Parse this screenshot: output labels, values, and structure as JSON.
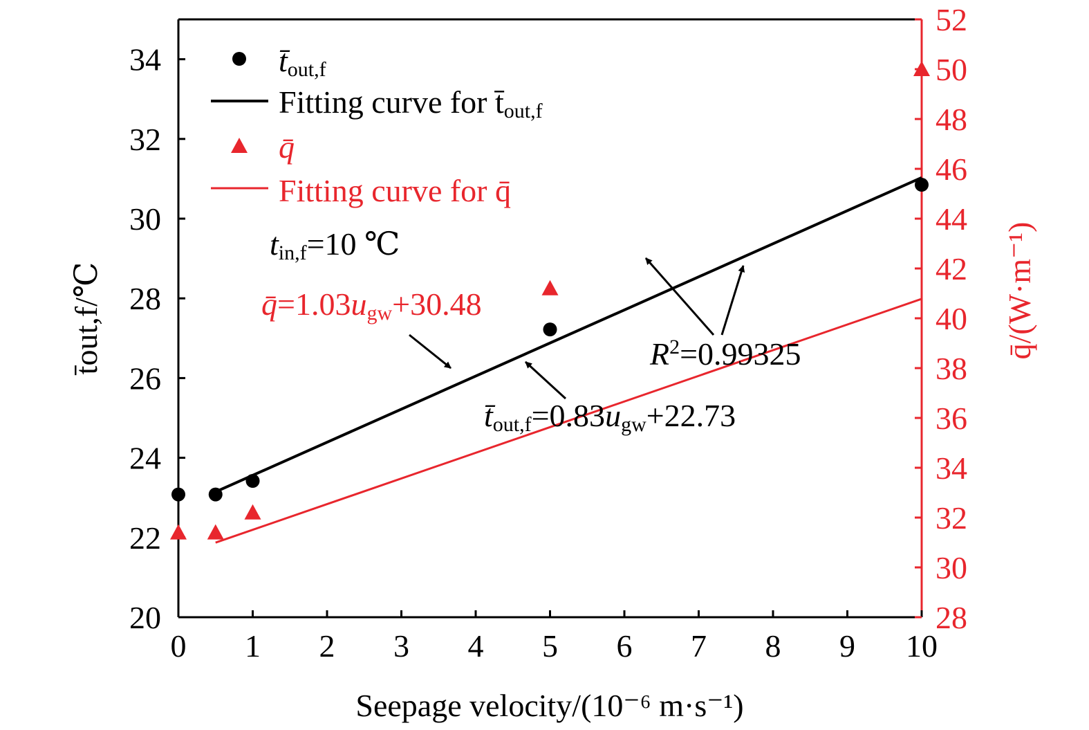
{
  "chart_data": {
    "type": "scatter",
    "x_axis": {
      "label": "Seepage velocity/(10⁻⁶ m·s⁻¹)",
      "range": [
        0,
        10
      ],
      "ticks": [
        "0",
        "1",
        "2",
        "3",
        "4",
        "5",
        "6",
        "7",
        "8",
        "9",
        "10"
      ]
    },
    "y_left": {
      "label": "t̄out,f/℃",
      "range": [
        20,
        35
      ],
      "ticks": [
        "20",
        "22",
        "24",
        "26",
        "28",
        "30",
        "32",
        "34"
      ],
      "color": "#000000"
    },
    "y_right": {
      "label": "q̄/(W·m⁻¹)",
      "range": [
        28,
        52
      ],
      "ticks": [
        "28",
        "30",
        "32",
        "34",
        "36",
        "38",
        "40",
        "42",
        "44",
        "46",
        "48",
        "50",
        "52"
      ],
      "color": "#e8262d"
    },
    "series": [
      {
        "name": "t̄out,f",
        "axis": "left",
        "marker": "circle",
        "color": "#000000",
        "x": [
          0,
          0.5,
          1,
          5,
          10
        ],
        "y": [
          23.08,
          23.08,
          23.42,
          27.22,
          30.85
        ]
      },
      {
        "name": "Fitting curve for t̄out,f",
        "axis": "left",
        "line": true,
        "color": "#000000",
        "slope": 0.83,
        "intercept": 22.73,
        "x_range": [
          0.5,
          10
        ]
      },
      {
        "name": "q̄",
        "axis": "right",
        "marker": "triangle",
        "color": "#e8262d",
        "x": [
          0,
          0.5,
          1,
          5,
          10
        ],
        "y": [
          31.4,
          31.4,
          32.2,
          41.2,
          50.0
        ]
      },
      {
        "name": "Fitting curve for q̄",
        "axis": "right",
        "line": true,
        "color": "#e8262d",
        "slope": 1.03,
        "intercept": 30.48,
        "x_range": [
          0.5,
          10
        ]
      }
    ],
    "legend": {
      "placement": "top-left",
      "entries": [
        {
          "base": "t̄",
          "sub": "out,f",
          "color": "#000000",
          "marker": "circle"
        },
        {
          "base": "Fitting curve for t̄",
          "sub": "out,f",
          "color": "#000000",
          "marker": "line"
        },
        {
          "base": "q̄",
          "sub": "",
          "color": "#e8262d",
          "marker": "triangle"
        },
        {
          "base": "Fitting curve for q̄",
          "sub": "",
          "color": "#e8262d",
          "marker": "line"
        }
      ]
    },
    "annotations": {
      "inlet": {
        "t": "t",
        "sub": "in,f",
        "rest": "=10 ℃"
      },
      "q_equation": {
        "q": "q̄",
        "mid": "=1.03",
        "u": "u",
        "sub": "gw",
        "rest": "+30.48"
      },
      "t_equation": {
        "t": "t̄",
        "sub1": "out,f",
        "mid": "=0.83",
        "u": "u",
        "sub2": "gw",
        "rest": "+22.73"
      },
      "r_squared": {
        "r": "R",
        "sup": "2",
        "rest": "=0.99325"
      }
    }
  }
}
